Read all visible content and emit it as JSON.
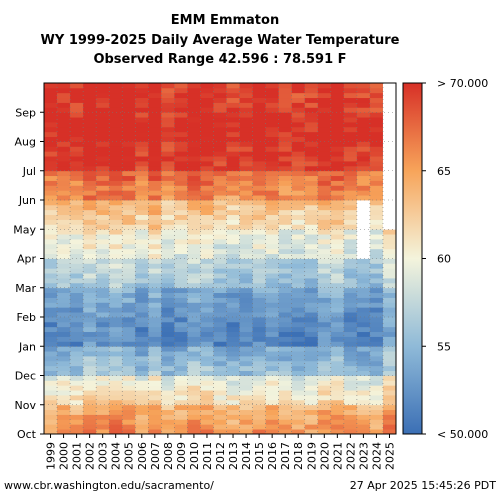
{
  "chart_data": {
    "type": "heatmap",
    "title_lines": [
      "EMM Emmaton",
      "WY 1999-2025 Daily Average Water Temperature",
      "Observed Range 42.596 : 78.591 F"
    ],
    "x_categories": [
      "1999",
      "2000",
      "2001",
      "2002",
      "2003",
      "2004",
      "2005",
      "2006",
      "2007",
      "2008",
      "2009",
      "2010",
      "2011",
      "2012",
      "2013",
      "2014",
      "2015",
      "2016",
      "2017",
      "2018",
      "2019",
      "2020",
      "2021",
      "2022",
      "2023",
      "2024",
      "2025"
    ],
    "y_months": [
      "Oct",
      "Nov",
      "Dec",
      "Jan",
      "Feb",
      "Mar",
      "Apr",
      "May",
      "Jun",
      "Jul",
      "Aug",
      "Sep"
    ],
    "colorbar": {
      "min": 50,
      "max": 70,
      "ticks": [
        50,
        55,
        60,
        65,
        70
      ],
      "tick_labels": [
        "< 50.000",
        "55",
        "60",
        "65",
        "> 70.000"
      ]
    },
    "monthly_mean_temperature_F": [
      66,
      62,
      56,
      52,
      53,
      56,
      59,
      62,
      66,
      70,
      71,
      70
    ],
    "grid": true,
    "missing_data": [
      {
        "year": "2023",
        "months": [
          "Apr",
          "May"
        ]
      },
      {
        "year": "2025",
        "months": [
          "May",
          "Jun",
          "Jul",
          "Aug",
          "Sep"
        ]
      }
    ],
    "colors": {
      "cold": "#3b6fb5",
      "cool": "#8fbad8",
      "neutral": "#f4f4dc",
      "warm": "#f7a45a",
      "hot": "#d73027"
    }
  },
  "footer": {
    "source": "www.cbr.washington.edu/sacramento/",
    "timestamp": "27 Apr 2025 15:45:26 PDT"
  }
}
